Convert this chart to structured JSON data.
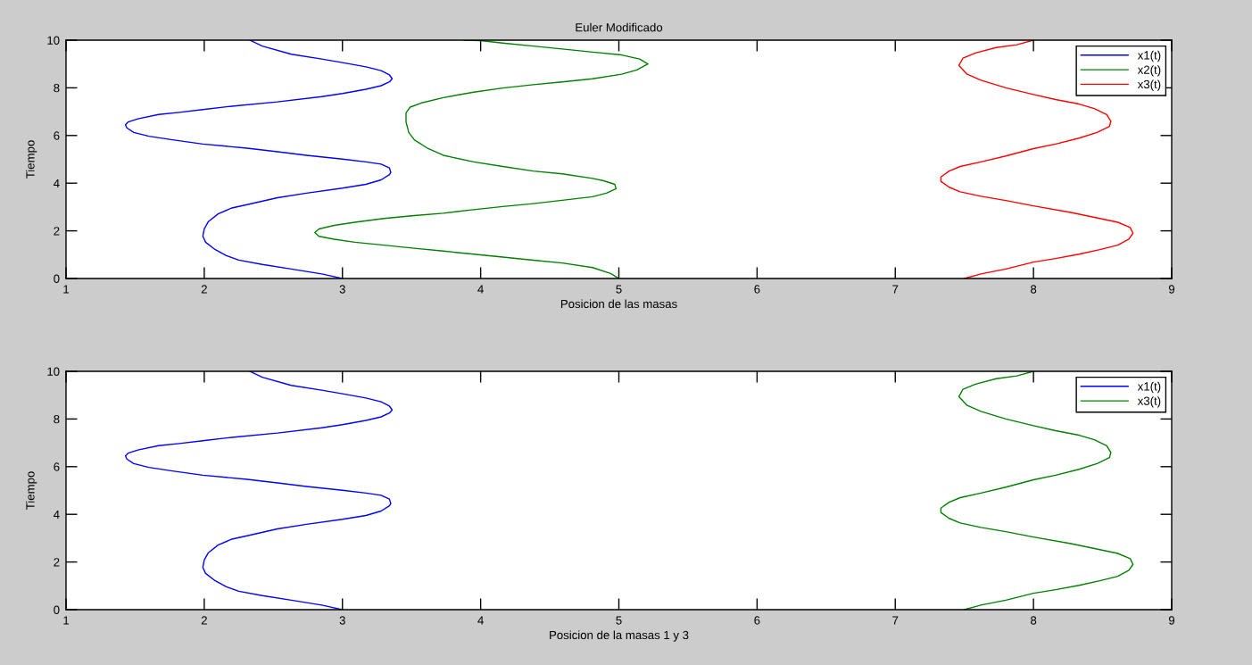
{
  "chart_data": [
    {
      "type": "line",
      "title": "Euler Modificado",
      "xlabel": "Posicion de las masas",
      "ylabel": "Tiempo",
      "xlim": [
        1,
        9
      ],
      "ylim": [
        0,
        10
      ],
      "xticks": [
        1,
        2,
        3,
        4,
        5,
        6,
        7,
        8,
        9
      ],
      "yticks": [
        0,
        2,
        4,
        6,
        8,
        10
      ],
      "legend": "top right",
      "line_style": "solid",
      "series": [
        {
          "name": "x1(t)",
          "color": "#0000ff",
          "x": [
            3.0,
            2.85,
            2.63,
            2.42,
            2.25,
            2.16,
            2.08,
            2.01,
            1.99,
            2.0,
            2.03,
            2.1,
            2.2,
            2.31,
            2.53,
            2.74,
            3.0,
            3.17,
            3.28,
            3.34,
            3.35,
            3.34,
            3.28,
            3.17,
            3.0,
            2.74,
            2.53,
            2.31,
            1.99,
            1.77,
            1.6,
            1.49,
            1.44,
            1.43,
            1.45,
            1.52,
            1.67,
            1.82,
            1.99,
            2.2,
            2.53,
            2.85,
            3.0,
            3.17,
            3.28,
            3.34,
            3.36,
            3.34,
            3.28,
            3.17,
            3.0,
            2.85,
            2.63,
            2.42,
            2.33
          ],
          "values": [
            0,
            0.19,
            0.4,
            0.59,
            0.77,
            0.96,
            1.21,
            1.52,
            1.77,
            2.08,
            2.39,
            2.71,
            2.96,
            3.1,
            3.39,
            3.58,
            3.79,
            3.95,
            4.14,
            4.36,
            4.45,
            4.64,
            4.8,
            4.89,
            5.01,
            5.17,
            5.32,
            5.47,
            5.64,
            5.82,
            5.97,
            6.13,
            6.32,
            6.45,
            6.57,
            6.7,
            6.88,
            6.97,
            7.09,
            7.23,
            7.41,
            7.63,
            7.76,
            7.94,
            8.09,
            8.25,
            8.38,
            8.54,
            8.72,
            8.88,
            9.06,
            9.21,
            9.41,
            9.75,
            10.0
          ]
        },
        {
          "name": "x2(t)",
          "color": "#008000",
          "x": [
            5.0,
            4.94,
            4.81,
            4.59,
            4.38,
            4.16,
            3.95,
            3.73,
            3.52,
            3.3,
            3.09,
            2.94,
            2.83,
            2.8,
            2.83,
            2.94,
            3.09,
            3.3,
            3.52,
            3.73,
            3.95,
            4.16,
            4.38,
            4.59,
            4.81,
            4.91,
            4.98,
            4.97,
            4.89,
            4.81,
            4.59,
            4.38,
            4.16,
            3.95,
            3.73,
            3.62,
            3.52,
            3.48,
            3.46,
            3.46,
            3.49,
            3.58,
            3.73,
            3.95,
            4.16,
            4.38,
            4.59,
            4.81,
            5.02,
            5.13,
            5.21,
            5.15,
            5.02,
            4.81,
            4.59,
            4.38,
            4.16,
            4.0,
            3.88
          ],
          "values": [
            0,
            0.21,
            0.46,
            0.65,
            0.77,
            0.9,
            1.02,
            1.15,
            1.27,
            1.4,
            1.52,
            1.65,
            1.77,
            1.93,
            2.08,
            2.23,
            2.36,
            2.52,
            2.64,
            2.74,
            2.89,
            3.02,
            3.14,
            3.28,
            3.43,
            3.58,
            3.77,
            3.95,
            4.1,
            4.2,
            4.39,
            4.51,
            4.7,
            4.89,
            5.17,
            5.45,
            5.82,
            6.13,
            6.57,
            6.95,
            7.19,
            7.38,
            7.59,
            7.82,
            7.99,
            8.13,
            8.25,
            8.38,
            8.57,
            8.75,
            9.0,
            9.21,
            9.38,
            9.5,
            9.63,
            9.75,
            9.88,
            9.98,
            10.0
          ]
        },
        {
          "name": "x3(t)",
          "color": "#ff0000",
          "x": [
            7.5,
            7.62,
            7.8,
            8.0,
            8.16,
            8.33,
            8.48,
            8.61,
            8.69,
            8.72,
            8.7,
            8.61,
            8.48,
            8.27,
            8.0,
            7.8,
            7.62,
            7.47,
            7.39,
            7.33,
            7.33,
            7.39,
            7.47,
            7.62,
            7.8,
            8.0,
            8.16,
            8.33,
            8.46,
            8.55,
            8.56,
            8.53,
            8.44,
            8.33,
            8.16,
            8.0,
            7.8,
            7.62,
            7.52,
            7.46,
            7.49,
            7.58,
            7.73,
            7.88,
            8.0
          ],
          "values": [
            0,
            0.19,
            0.4,
            0.69,
            0.84,
            1.02,
            1.21,
            1.4,
            1.65,
            1.9,
            2.14,
            2.36,
            2.52,
            2.77,
            3.05,
            3.27,
            3.45,
            3.64,
            3.83,
            4.08,
            4.26,
            4.51,
            4.7,
            4.89,
            5.14,
            5.45,
            5.64,
            5.89,
            6.13,
            6.38,
            6.6,
            6.88,
            7.13,
            7.32,
            7.51,
            7.72,
            8.0,
            8.32,
            8.57,
            8.94,
            9.25,
            9.46,
            9.69,
            9.81,
            10.0
          ]
        }
      ]
    },
    {
      "type": "line",
      "xlabel": "Posicion de la masas 1 y 3",
      "ylabel": "Tiempo",
      "xlim": [
        1,
        9
      ],
      "ylim": [
        0,
        10
      ],
      "xticks": [
        1,
        2,
        3,
        4,
        5,
        6,
        7,
        8,
        9
      ],
      "yticks": [
        0,
        2,
        4,
        6,
        8,
        10
      ],
      "legend": "top right",
      "line_style": "solid",
      "series": [
        {
          "name": "x1(t)",
          "color": "#0000ff",
          "x": [
            3.0,
            2.85,
            2.63,
            2.42,
            2.25,
            2.16,
            2.08,
            2.01,
            1.99,
            2.0,
            2.03,
            2.1,
            2.2,
            2.31,
            2.53,
            2.74,
            3.0,
            3.17,
            3.28,
            3.34,
            3.35,
            3.34,
            3.28,
            3.17,
            3.0,
            2.74,
            2.53,
            2.31,
            1.99,
            1.77,
            1.6,
            1.49,
            1.44,
            1.43,
            1.45,
            1.52,
            1.67,
            1.82,
            1.99,
            2.2,
            2.53,
            2.85,
            3.0,
            3.17,
            3.28,
            3.34,
            3.36,
            3.34,
            3.28,
            3.17,
            3.0,
            2.85,
            2.63,
            2.42,
            2.33
          ],
          "values": [
            0,
            0.19,
            0.4,
            0.59,
            0.77,
            0.96,
            1.21,
            1.52,
            1.77,
            2.08,
            2.39,
            2.71,
            2.96,
            3.1,
            3.39,
            3.58,
            3.79,
            3.95,
            4.14,
            4.36,
            4.45,
            4.64,
            4.8,
            4.89,
            5.01,
            5.17,
            5.32,
            5.47,
            5.64,
            5.82,
            5.97,
            6.13,
            6.32,
            6.45,
            6.57,
            6.7,
            6.88,
            6.97,
            7.09,
            7.23,
            7.41,
            7.63,
            7.76,
            7.94,
            8.09,
            8.25,
            8.38,
            8.54,
            8.72,
            8.88,
            9.06,
            9.21,
            9.41,
            9.75,
            10.0
          ]
        },
        {
          "name": "x3(t)",
          "color": "#008000",
          "x": [
            7.5,
            7.62,
            7.8,
            8.0,
            8.16,
            8.33,
            8.48,
            8.61,
            8.69,
            8.72,
            8.7,
            8.61,
            8.48,
            8.27,
            8.0,
            7.8,
            7.62,
            7.47,
            7.39,
            7.33,
            7.33,
            7.39,
            7.47,
            7.62,
            7.8,
            8.0,
            8.16,
            8.33,
            8.46,
            8.55,
            8.56,
            8.53,
            8.44,
            8.33,
            8.16,
            8.0,
            7.8,
            7.62,
            7.52,
            7.46,
            7.49,
            7.58,
            7.73,
            7.88,
            8.0
          ],
          "values": [
            0,
            0.19,
            0.4,
            0.69,
            0.84,
            1.02,
            1.21,
            1.4,
            1.65,
            1.9,
            2.14,
            2.36,
            2.52,
            2.77,
            3.05,
            3.27,
            3.45,
            3.64,
            3.83,
            4.08,
            4.26,
            4.51,
            4.7,
            4.89,
            5.14,
            5.45,
            5.64,
            5.89,
            6.13,
            6.38,
            6.6,
            6.88,
            7.13,
            7.32,
            7.51,
            7.72,
            8.0,
            8.32,
            8.57,
            8.94,
            9.25,
            9.46,
            9.69,
            9.81,
            10.0
          ]
        }
      ]
    }
  ]
}
